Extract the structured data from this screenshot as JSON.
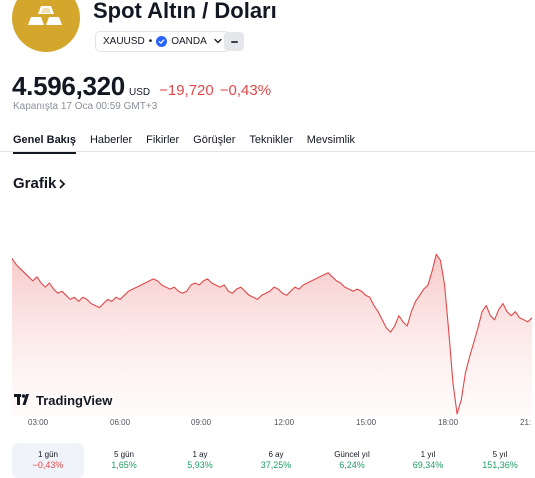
{
  "header": {
    "title": "Spot Altın / Doları",
    "symbol": "XAUUSD",
    "separator": "•",
    "exchange": "OANDA",
    "logo_icon": "gold-bars-icon",
    "colors": {
      "logo_bg": "#d4a72c",
      "negative": "#e04a4a",
      "positive": "#1e9e62",
      "verified": "#2962ff"
    }
  },
  "quote": {
    "price": "4.596,320",
    "currency": "USD",
    "change": "−19,720",
    "change_percent": "−0,43%",
    "status": "Kapanışta 17 Oca 00:59 GMT+3"
  },
  "tabs": [
    {
      "label": "Genel Bakış",
      "active": true
    },
    {
      "label": "Haberler",
      "active": false
    },
    {
      "label": "Fikirler",
      "active": false
    },
    {
      "label": "Görüşler",
      "active": false
    },
    {
      "label": "Teknikler",
      "active": false
    },
    {
      "label": "Mevsimlik",
      "active": false
    }
  ],
  "section": {
    "title": "Grafik"
  },
  "chart_brand": "TradingView",
  "chart_data": {
    "type": "area",
    "title": "",
    "x_ticks": [
      "03:00",
      "06:00",
      "09:00",
      "12:00",
      "15:00",
      "18:00",
      "21:"
    ],
    "y_range": [
      4540,
      4625
    ],
    "grid": false,
    "series": [
      {
        "values": [
          4616,
          4613,
          4611,
          4609,
          4607,
          4605,
          4607,
          4604,
          4602,
          4604,
          4601,
          4599,
          4600,
          4598,
          4596,
          4597,
          4595,
          4597,
          4596,
          4594,
          4593,
          4592,
          4594,
          4596,
          4595,
          4597,
          4596,
          4598,
          4600,
          4601,
          4602,
          4603,
          4604,
          4605,
          4606,
          4605,
          4603,
          4602,
          4601,
          4602,
          4600,
          4599,
          4600,
          4603,
          4604,
          4603,
          4605,
          4606,
          4604,
          4603,
          4602,
          4603,
          4600,
          4599,
          4601,
          4602,
          4600,
          4598,
          4597,
          4596,
          4598,
          4599,
          4600,
          4602,
          4601,
          4599,
          4598,
          4600,
          4602,
          4601,
          4603,
          4604,
          4605,
          4606,
          4607,
          4608,
          4609,
          4607,
          4605,
          4604,
          4602,
          4601,
          4600,
          4601,
          4600,
          4598,
          4597,
          4593,
          4590,
          4586,
          4582,
          4580,
          4583,
          4588,
          4585,
          4583,
          4590,
          4595,
          4598,
          4601,
          4603,
          4610,
          4618,
          4615,
          4603,
          4580,
          4555,
          4540,
          4547,
          4560,
          4568,
          4575,
          4582,
          4590,
          4593,
          4588,
          4586,
          4591,
          4594,
          4590,
          4588,
          4590,
          4587,
          4586,
          4585,
          4587
        ]
      }
    ]
  },
  "periods": [
    {
      "label": "1 gün",
      "value": "−0,43%",
      "sign": "neg",
      "active": true
    },
    {
      "label": "5 gün",
      "value": "1,65%",
      "sign": "pos",
      "active": false
    },
    {
      "label": "1 ay",
      "value": "5,93%",
      "sign": "pos",
      "active": false
    },
    {
      "label": "6 ay",
      "value": "37,25%",
      "sign": "pos",
      "active": false
    },
    {
      "label": "Güncel yıl",
      "value": "6,24%",
      "sign": "pos",
      "active": false
    },
    {
      "label": "1 yıl",
      "value": "69,34%",
      "sign": "pos",
      "active": false
    },
    {
      "label": "5 yıl",
      "value": "151,36%",
      "sign": "pos",
      "active": false
    }
  ]
}
